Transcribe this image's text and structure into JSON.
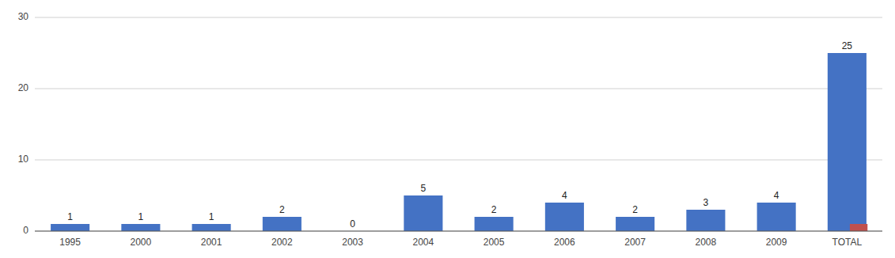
{
  "chart_data": {
    "type": "bar",
    "categories": [
      "1995",
      "2000",
      "2001",
      "2002",
      "2003",
      "2004",
      "2005",
      "2006",
      "2007",
      "2008",
      "2009",
      "TOTAL"
    ],
    "series": [
      {
        "color": "#4472C4",
        "values": [
          1,
          1,
          1,
          2,
          0,
          5,
          2,
          4,
          2,
          3,
          4,
          25
        ],
        "data_labels": true
      },
      {
        "color": "#C0504D",
        "values": [
          0,
          0,
          0,
          0,
          0,
          0,
          0,
          0,
          0,
          0,
          0,
          1
        ]
      }
    ],
    "ylim": [
      0,
      30
    ],
    "yticks": [
      0,
      10,
      20,
      30
    ],
    "grid": true
  }
}
